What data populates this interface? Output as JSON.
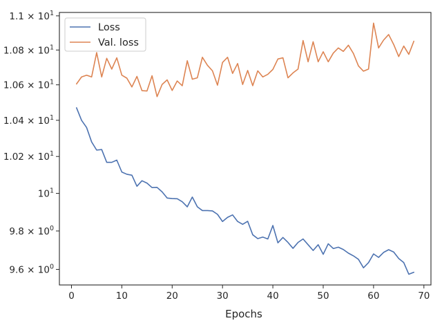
{
  "chart_data": {
    "type": "line",
    "title": "",
    "xlabel": "Epochs",
    "ylabel": "",
    "y_scale": "log",
    "xlim": [
      -2.4,
      71.4
    ],
    "ylim": [
      9.52,
      11.02
    ],
    "grid": false,
    "legend_position": "top-left",
    "x_ticks": [
      {
        "value": 0,
        "label": "0"
      },
      {
        "value": 10,
        "label": "10"
      },
      {
        "value": 20,
        "label": "20"
      },
      {
        "value": 30,
        "label": "30"
      },
      {
        "value": 40,
        "label": "40"
      },
      {
        "value": 50,
        "label": "50"
      },
      {
        "value": 60,
        "label": "60"
      },
      {
        "value": 70,
        "label": "70"
      }
    ],
    "y_ticks": [
      {
        "value": 9.6,
        "base": "9.6",
        "sep": " × ",
        "exp": "10",
        "pow": "0"
      },
      {
        "value": 9.8,
        "base": "9.8",
        "sep": " × ",
        "exp": "10",
        "pow": "0"
      },
      {
        "value": 10.0,
        "base": "",
        "sep": "",
        "exp": "10",
        "pow": "1"
      },
      {
        "value": 10.2,
        "base": "1.02",
        "sep": " × ",
        "exp": "10",
        "pow": "1"
      },
      {
        "value": 10.4,
        "base": "1.04",
        "sep": " × ",
        "exp": "10",
        "pow": "1"
      },
      {
        "value": 10.6,
        "base": "1.06",
        "sep": " × ",
        "exp": "10",
        "pow": "1"
      },
      {
        "value": 10.8,
        "base": "1.08",
        "sep": " × ",
        "exp": "10",
        "pow": "1"
      },
      {
        "value": 11.0,
        "base": "1.1",
        "sep": " × ",
        "exp": "10",
        "pow": "1"
      }
    ],
    "x": [
      1,
      2,
      3,
      4,
      5,
      6,
      7,
      8,
      9,
      10,
      11,
      12,
      13,
      14,
      15,
      16,
      17,
      18,
      19,
      20,
      21,
      22,
      23,
      24,
      25,
      26,
      27,
      28,
      29,
      30,
      31,
      32,
      33,
      34,
      35,
      36,
      37,
      38,
      39,
      40,
      41,
      42,
      43,
      44,
      45,
      46,
      47,
      48,
      49,
      50,
      51,
      52,
      53,
      54,
      55,
      56,
      57,
      58,
      59,
      60,
      61,
      62,
      63,
      64,
      65,
      66,
      67,
      68
    ],
    "series": [
      {
        "name": "Loss",
        "color": "#4c72b0",
        "values": [
          10.47,
          10.4,
          10.36,
          10.28,
          10.235,
          10.238,
          10.168,
          10.168,
          10.18,
          10.115,
          10.103,
          10.098,
          10.038,
          10.068,
          10.055,
          10.031,
          10.032,
          10.008,
          9.975,
          9.972,
          9.971,
          9.955,
          9.928,
          9.98,
          9.928,
          9.908,
          9.908,
          9.906,
          9.888,
          9.85,
          9.872,
          9.885,
          9.85,
          9.835,
          9.851,
          9.78,
          9.76,
          9.768,
          9.758,
          9.829,
          9.738,
          9.766,
          9.74,
          9.709,
          9.74,
          9.758,
          9.728,
          9.698,
          9.728,
          9.678,
          9.733,
          9.708,
          9.715,
          9.703,
          9.684,
          9.67,
          9.652,
          9.608,
          9.635,
          9.68,
          9.662,
          9.688,
          9.702,
          9.69,
          9.656,
          9.635,
          9.575,
          9.585
        ]
      },
      {
        "name": "Val. loss",
        "color": "#dd8452",
        "values": [
          10.605,
          10.645,
          10.655,
          10.645,
          10.785,
          10.645,
          10.752,
          10.69,
          10.755,
          10.655,
          10.638,
          10.588,
          10.648,
          10.567,
          10.565,
          10.652,
          10.533,
          10.602,
          10.628,
          10.568,
          10.622,
          10.595,
          10.738,
          10.632,
          10.64,
          10.758,
          10.712,
          10.68,
          10.598,
          10.728,
          10.758,
          10.665,
          10.722,
          10.602,
          10.682,
          10.595,
          10.68,
          10.645,
          10.66,
          10.688,
          10.748,
          10.755,
          10.64,
          10.668,
          10.69,
          10.855,
          10.732,
          10.848,
          10.732,
          10.79,
          10.732,
          10.782,
          10.812,
          10.792,
          10.828,
          10.78,
          10.708,
          10.678,
          10.69,
          10.957,
          10.812,
          10.858,
          10.89,
          10.832,
          10.762,
          10.823,
          10.775,
          10.851
        ]
      }
    ]
  }
}
